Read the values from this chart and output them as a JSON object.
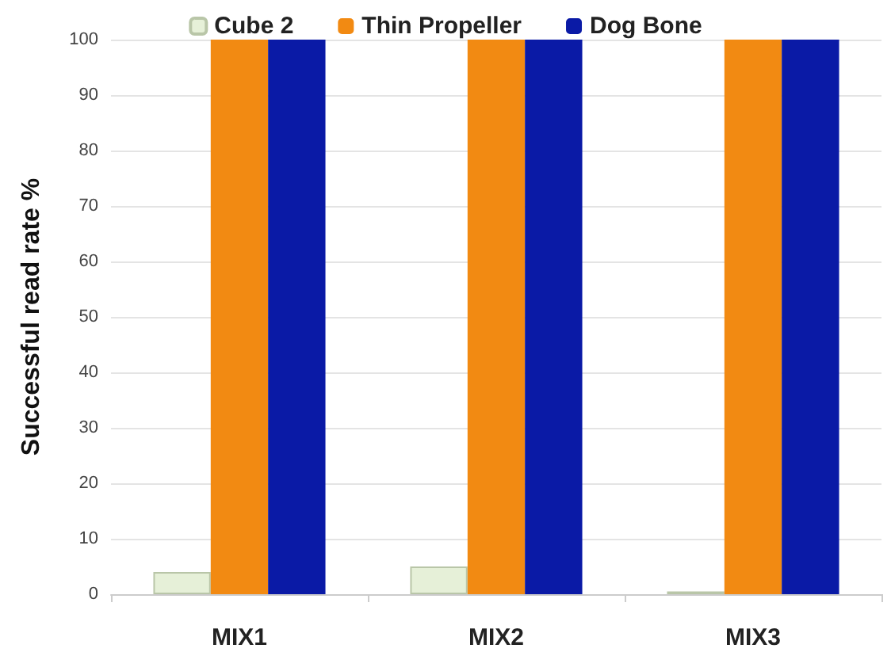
{
  "chart_data": {
    "type": "bar",
    "ylabel": "Successful read rate %",
    "categories": [
      "MIX1",
      "MIX2",
      "MIX3"
    ],
    "series": [
      {
        "name": "Cube 2",
        "color": "#e6f0d8",
        "values": [
          4,
          5,
          0.5
        ]
      },
      {
        "name": "Thin Propeller",
        "color": "#f28a12",
        "values": [
          100,
          100,
          100
        ]
      },
      {
        "name": "Dog Bone",
        "color": "#0a1aa6",
        "values": [
          100,
          100,
          100
        ]
      }
    ],
    "ylim": [
      0,
      100
    ],
    "yticks": [
      0,
      10,
      20,
      30,
      40,
      50,
      60,
      70,
      80,
      90,
      100
    ],
    "grid": "y",
    "legend": "top"
  }
}
